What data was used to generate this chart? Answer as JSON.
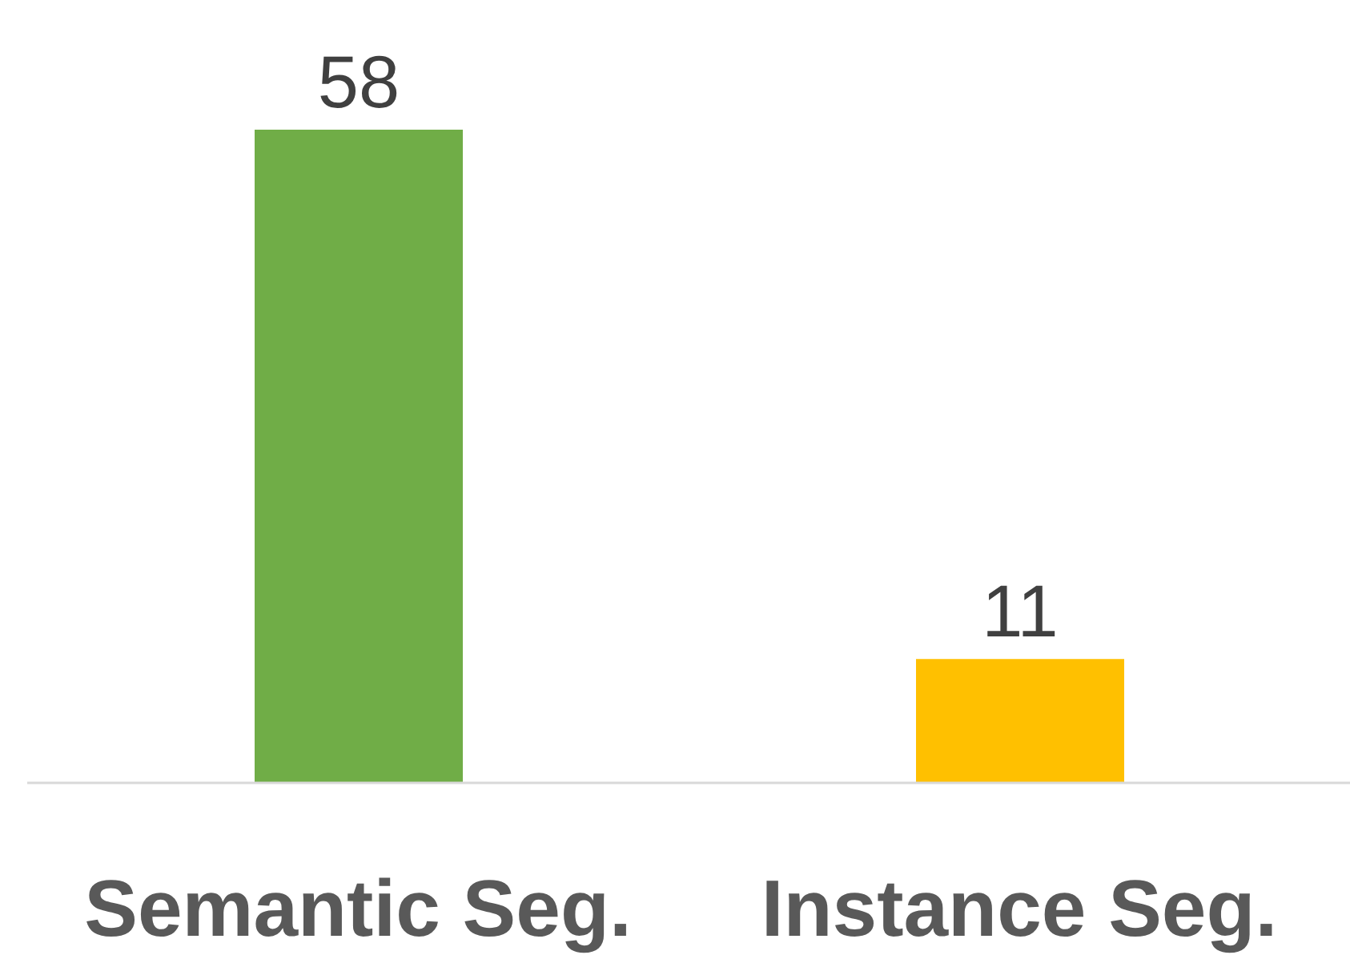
{
  "chart_data": {
    "type": "bar",
    "categories": [
      "Semantic Seg.",
      "Instance Seg."
    ],
    "values": [
      58,
      11
    ],
    "colors": [
      "#70ad47",
      "#ffc000"
    ],
    "data_labels": true,
    "grid": false,
    "legend": false,
    "tick_labels": "x"
  }
}
